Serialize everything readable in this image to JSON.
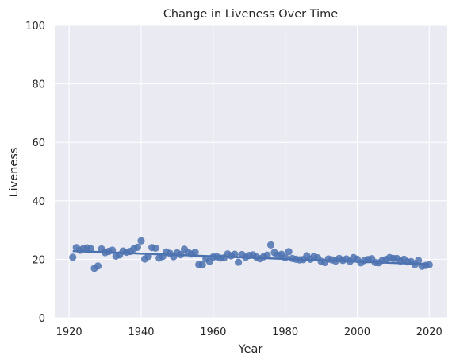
{
  "chart_data": {
    "type": "scatter",
    "title": "Change in Liveness Over Time",
    "xlabel": "Year",
    "ylabel": "Liveness",
    "xlim": [
      1916,
      2025
    ],
    "ylim": [
      0,
      100
    ],
    "xticks": [
      1920,
      1940,
      1960,
      1980,
      2000,
      2020
    ],
    "yticks": [
      0,
      20,
      40,
      60,
      80,
      100
    ],
    "grid": true,
    "background": "#eaeaf2",
    "grid_color": "#ffffff",
    "point_color": "#4c72b0",
    "regression_line": {
      "x": [
        1921,
        2020
      ],
      "y": [
        22.8,
        18.3
      ]
    },
    "series": [
      {
        "x": [
          1921,
          1922,
          1923,
          1924,
          1925,
          1926,
          1927,
          1928,
          1929,
          1930,
          1931,
          1932,
          1933,
          1934,
          1935,
          1936,
          1937,
          1938,
          1939,
          1940,
          1941,
          1942,
          1943,
          1944,
          1945,
          1946,
          1947,
          1948,
          1949,
          1950,
          1951,
          1952,
          1953,
          1954,
          1955,
          1956,
          1957,
          1958,
          1959,
          1960,
          1961,
          1962,
          1963,
          1964,
          1965,
          1966,
          1967,
          1968,
          1969,
          1970,
          1971,
          1972,
          1973,
          1974,
          1975,
          1976,
          1977,
          1978,
          1979,
          1980,
          1981,
          1982,
          1983,
          1984,
          1985,
          1986,
          1987,
          1988,
          1989,
          1990,
          1991,
          1992,
          1993,
          1994,
          1995,
          1996,
          1997,
          1998,
          1999,
          2000,
          2001,
          2002,
          2003,
          2004,
          2005,
          2006,
          2007,
          2008,
          2009,
          2010,
          2011,
          2012,
          2013,
          2014,
          2015,
          2016,
          2017,
          2018,
          2019,
          2020
        ],
        "y": [
          20.7,
          24.0,
          23.1,
          23.7,
          23.9,
          23.6,
          16.9,
          17.7,
          23.5,
          22.3,
          22.7,
          23.1,
          21.1,
          21.5,
          22.8,
          22.4,
          22.7,
          23.6,
          24.1,
          26.3,
          20.1,
          21.0,
          24.0,
          23.8,
          20.4,
          21.0,
          22.5,
          22.0,
          20.9,
          22.2,
          21.6,
          23.4,
          22.4,
          21.8,
          22.4,
          18.2,
          18.1,
          20.2,
          19.3,
          20.8,
          20.9,
          20.4,
          20.5,
          21.8,
          21.2,
          21.7,
          19.0,
          21.6,
          20.7,
          21.3,
          21.5,
          20.8,
          20.2,
          20.9,
          21.4,
          24.9,
          22.3,
          21.4,
          21.7,
          20.6,
          22.6,
          20.3,
          20.0,
          19.8,
          19.9,
          21.2,
          20.0,
          21.0,
          20.5,
          19.3,
          18.9,
          20.1,
          19.8,
          19.4,
          20.3,
          19.6,
          20.1,
          19.3,
          20.6,
          20.0,
          18.8,
          19.6,
          19.9,
          20.2,
          18.9,
          18.8,
          19.7,
          19.9,
          20.6,
          20.3,
          20.3,
          19.4,
          20.0,
          19.1,
          19.2,
          18.2,
          19.6,
          17.6,
          17.9,
          18.1
        ]
      }
    ]
  }
}
